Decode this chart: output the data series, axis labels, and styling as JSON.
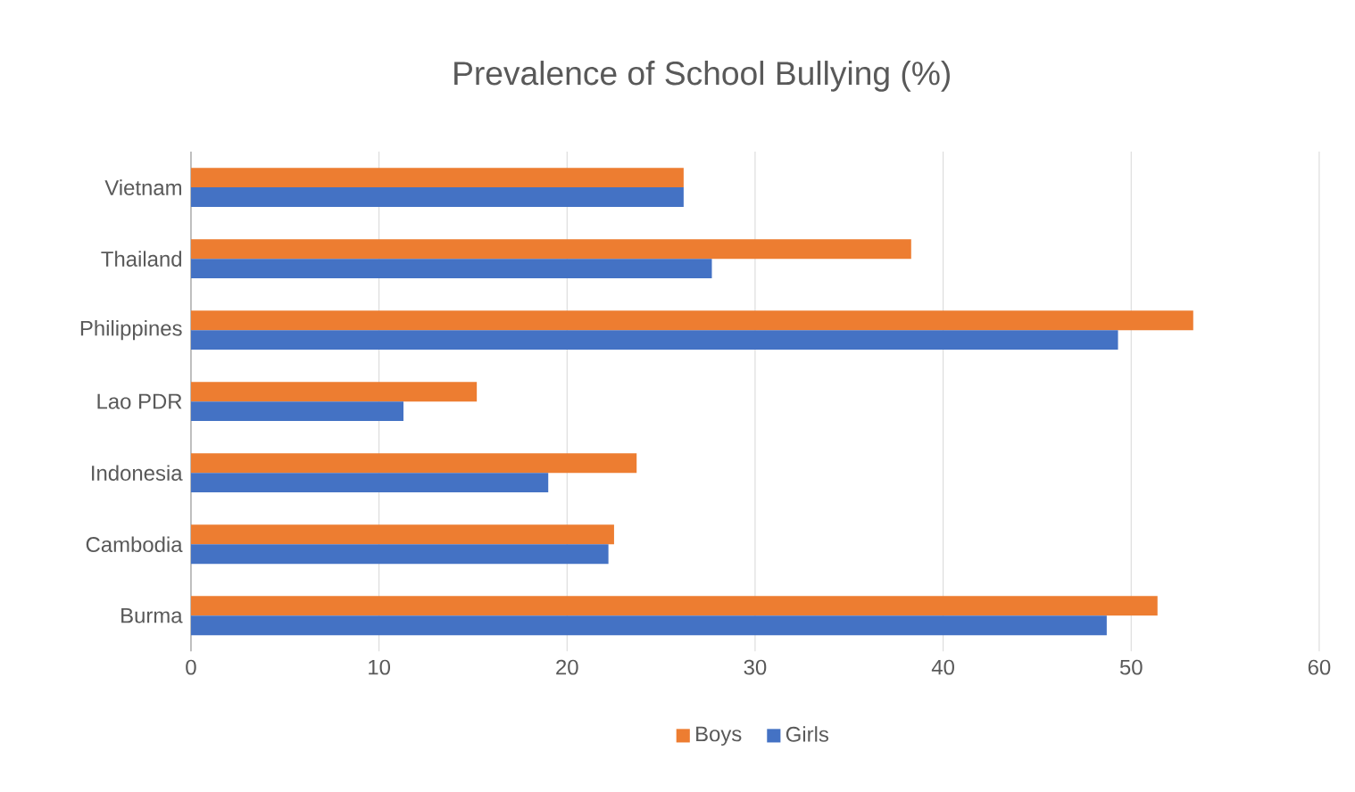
{
  "chart_data": {
    "type": "bar",
    "orientation": "horizontal",
    "title": "Prevalence of School Bullying (%)",
    "categories": [
      "Vietnam",
      "Thailand",
      "Philippines",
      "Lao PDR",
      "Indonesia",
      "Cambodia",
      "Burma"
    ],
    "series": [
      {
        "name": "Boys",
        "color": "#ed7d31",
        "values": [
          26.2,
          38.3,
          53.3,
          15.2,
          23.7,
          22.5,
          51.4
        ]
      },
      {
        "name": "Girls",
        "color": "#4472c4",
        "values": [
          26.2,
          27.7,
          49.3,
          11.3,
          19.0,
          22.2,
          48.7
        ]
      }
    ],
    "xlim": [
      0,
      60
    ],
    "xticks": [
      0,
      10,
      20,
      30,
      40,
      50,
      60
    ],
    "grid": "x",
    "legend": "bottom"
  }
}
